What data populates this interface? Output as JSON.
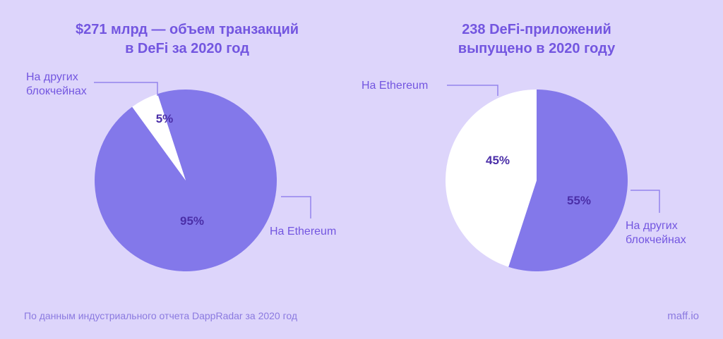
{
  "footer": {
    "source": "По данным индустриального отчета DappRadar за 2020 год",
    "brand": "maff.io"
  },
  "colors": {
    "background": "#ddd5fb",
    "ethereum_left": "#8378ea",
    "other_left": "#ffffff",
    "ethereum_right": "#ffffff",
    "other_right": "#8378ea",
    "text_accent": "#7356e0",
    "label_dark": "#4b2fa8"
  },
  "chart_data": [
    {
      "type": "pie",
      "title": "$271 млрд — объем транзакций\nв DeFi за 2020 год",
      "slices": [
        {
          "category": "На Ethereum",
          "value": 95,
          "label": "95%"
        },
        {
          "category": "На других\nблокчейнах",
          "value": 5,
          "label": "5%"
        }
      ]
    },
    {
      "type": "pie",
      "title": "238 DeFi-приложений\nвыпущено в 2020 году",
      "slices": [
        {
          "category": "На других\nблокчейнах",
          "value": 55,
          "label": "55%"
        },
        {
          "category": "На Ethereum",
          "value": 45,
          "label": "45%"
        }
      ]
    }
  ]
}
